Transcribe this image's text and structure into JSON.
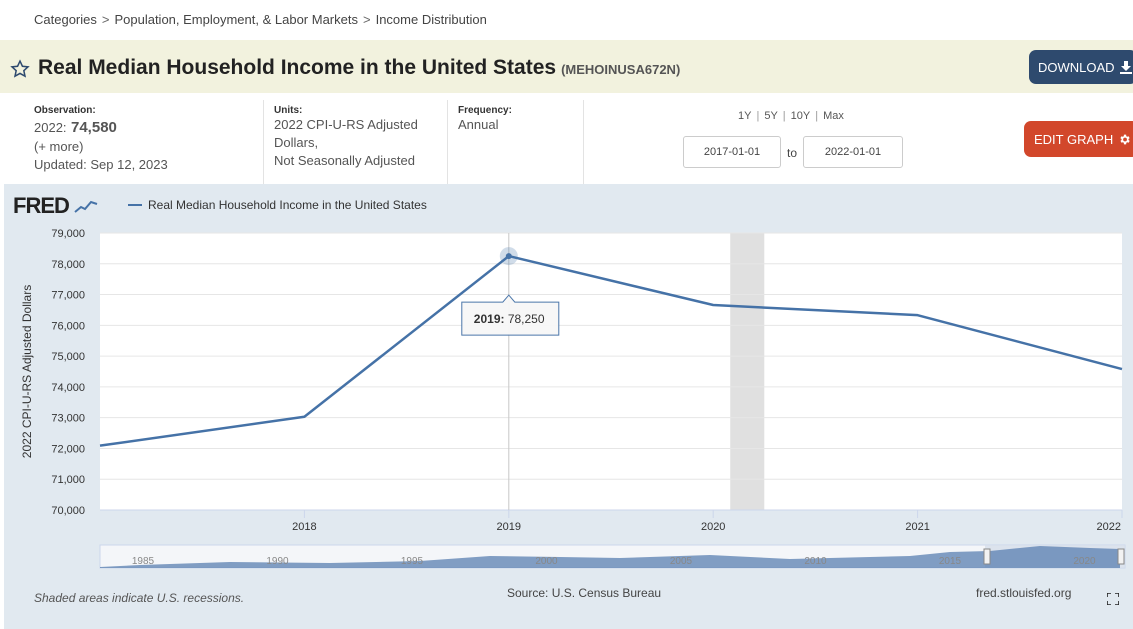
{
  "breadcrumb": {
    "items": [
      "Categories",
      "Population, Employment, & Labor Markets",
      "Income Distribution"
    ],
    "separator": ">"
  },
  "header": {
    "title": "Real Median Household Income in the United States",
    "series_id": "(MEHOINUSA672N)",
    "download_label": "DOWNLOAD",
    "edit_label": "EDIT GRAPH"
  },
  "meta": {
    "observation_label": "Observation:",
    "observation_period": "2022:",
    "observation_value": "74,580",
    "more": "(+ more)",
    "updated": "Updated: Sep 12, 2023",
    "units_label": "Units:",
    "units_lines": [
      "2022 CPI-U-RS Adjusted",
      "Dollars,",
      "Not Seasonally Adjusted"
    ],
    "frequency_label": "Frequency:",
    "frequency_value": "Annual"
  },
  "range": {
    "links": [
      "1Y",
      "5Y",
      "10Y",
      "Max"
    ],
    "start": "2017-01-01",
    "to": "to",
    "end": "2022-01-01"
  },
  "graph": {
    "logo": "FRED",
    "legend": "Real Median Household Income in the United States",
    "tooltip_label": "2019:",
    "tooltip_value": "78,250",
    "navigator_labels": [
      "1985",
      "1990",
      "1995",
      "2000",
      "2005",
      "2010",
      "2015",
      "2020"
    ]
  },
  "footer": {
    "note": "Shaded areas indicate U.S. recessions.",
    "source": "Source: U.S. Census Bureau",
    "site": "fred.stlouisfed.org"
  },
  "colors": {
    "line": "#4572a7",
    "download_bg": "#2e4a6e",
    "edit_bg": "#d2472b",
    "panel_bg": "#e1e9f0",
    "title_bar": "#f2f2de",
    "recession": "#e0e0e0"
  },
  "chart_data": {
    "type": "line",
    "ylabel": "2022 CPI-U-RS Adjusted Dollars",
    "xlabel": "",
    "x": [
      "2017",
      "2018",
      "2019",
      "2020",
      "2021",
      "2022"
    ],
    "series": [
      {
        "name": "Real Median Household Income in the United States",
        "values": [
          72090,
          73030,
          78250,
          76660,
          76330,
          74580
        ]
      }
    ],
    "x_tick_labels": [
      "2018",
      "2019",
      "2020",
      "2021",
      "2022"
    ],
    "y_tick_labels": [
      "70,000",
      "71,000",
      "72,000",
      "73,000",
      "74,000",
      "75,000",
      "76,000",
      "77,000",
      "78,000",
      "79,000"
    ],
    "ylim": [
      70000,
      79000
    ],
    "recession": {
      "start": "2020-02",
      "end": "2020-04"
    },
    "grid": "horizontal",
    "legend": "top-left",
    "highlight": {
      "x": "2019",
      "y": 78250
    }
  }
}
